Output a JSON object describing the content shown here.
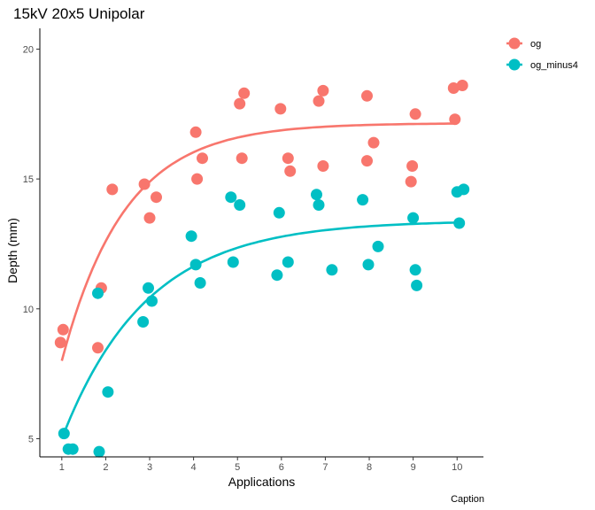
{
  "chart_data": {
    "type": "scatter",
    "title": "15kV 20x5 Unipolar",
    "xlabel": "Applications",
    "ylabel": "Depth (mm)",
    "caption": "Caption",
    "xlim": [
      0.5,
      10.6
    ],
    "ylim": [
      4.3,
      20.8
    ],
    "x_ticks": [
      "1",
      "2",
      "3",
      "4",
      "5",
      "6",
      "7",
      "8",
      "9",
      "10"
    ],
    "y_ticks": [
      "5",
      "10",
      "15",
      "20"
    ],
    "grid": false,
    "legend_position": "top-right",
    "series": [
      {
        "name": "og",
        "color": "#F8766D",
        "points": [
          [
            0.97,
            8.7
          ],
          [
            1.03,
            9.2
          ],
          [
            1.82,
            8.5
          ],
          [
            1.9,
            10.8
          ],
          [
            2.15,
            14.6
          ],
          [
            2.88,
            14.8
          ],
          [
            3.0,
            13.5
          ],
          [
            3.15,
            14.3
          ],
          [
            4.05,
            16.8
          ],
          [
            4.08,
            15.0
          ],
          [
            4.2,
            15.8
          ],
          [
            5.05,
            17.9
          ],
          [
            5.15,
            18.3
          ],
          [
            5.1,
            15.8
          ],
          [
            5.98,
            17.7
          ],
          [
            6.15,
            15.8
          ],
          [
            6.2,
            15.3
          ],
          [
            6.85,
            18.0
          ],
          [
            6.95,
            18.4
          ],
          [
            6.95,
            15.5
          ],
          [
            7.95,
            18.2
          ],
          [
            7.95,
            15.7
          ],
          [
            8.1,
            16.4
          ],
          [
            8.95,
            14.9
          ],
          [
            8.98,
            15.5
          ],
          [
            9.05,
            17.5
          ],
          [
            9.92,
            18.5
          ],
          [
            9.95,
            17.3
          ],
          [
            10.12,
            18.6
          ]
        ],
        "fit": {
          "asymptote": 17.15,
          "start": 8.0,
          "rate": 0.7
        }
      },
      {
        "name": "og_minus4",
        "color": "#00BFC4",
        "points": [
          [
            1.05,
            5.2
          ],
          [
            1.15,
            4.6
          ],
          [
            1.25,
            4.6
          ],
          [
            1.85,
            4.5
          ],
          [
            1.82,
            10.6
          ],
          [
            2.05,
            6.8
          ],
          [
            2.85,
            9.5
          ],
          [
            2.97,
            10.8
          ],
          [
            3.05,
            10.3
          ],
          [
            3.95,
            12.8
          ],
          [
            4.05,
            11.7
          ],
          [
            4.15,
            11.0
          ],
          [
            4.85,
            14.3
          ],
          [
            4.9,
            11.8
          ],
          [
            5.05,
            14.0
          ],
          [
            5.9,
            11.3
          ],
          [
            5.95,
            13.7
          ],
          [
            6.15,
            11.8
          ],
          [
            6.8,
            14.4
          ],
          [
            6.85,
            14.0
          ],
          [
            7.15,
            11.5
          ],
          [
            7.85,
            14.2
          ],
          [
            7.98,
            11.7
          ],
          [
            8.2,
            12.4
          ],
          [
            9.0,
            13.5
          ],
          [
            9.05,
            11.5
          ],
          [
            9.08,
            10.9
          ],
          [
            10.0,
            14.5
          ],
          [
            10.05,
            13.3
          ],
          [
            10.15,
            14.6
          ]
        ],
        "fit": {
          "asymptote": 13.4,
          "start": 5.0,
          "rate": 0.52
        }
      }
    ]
  }
}
